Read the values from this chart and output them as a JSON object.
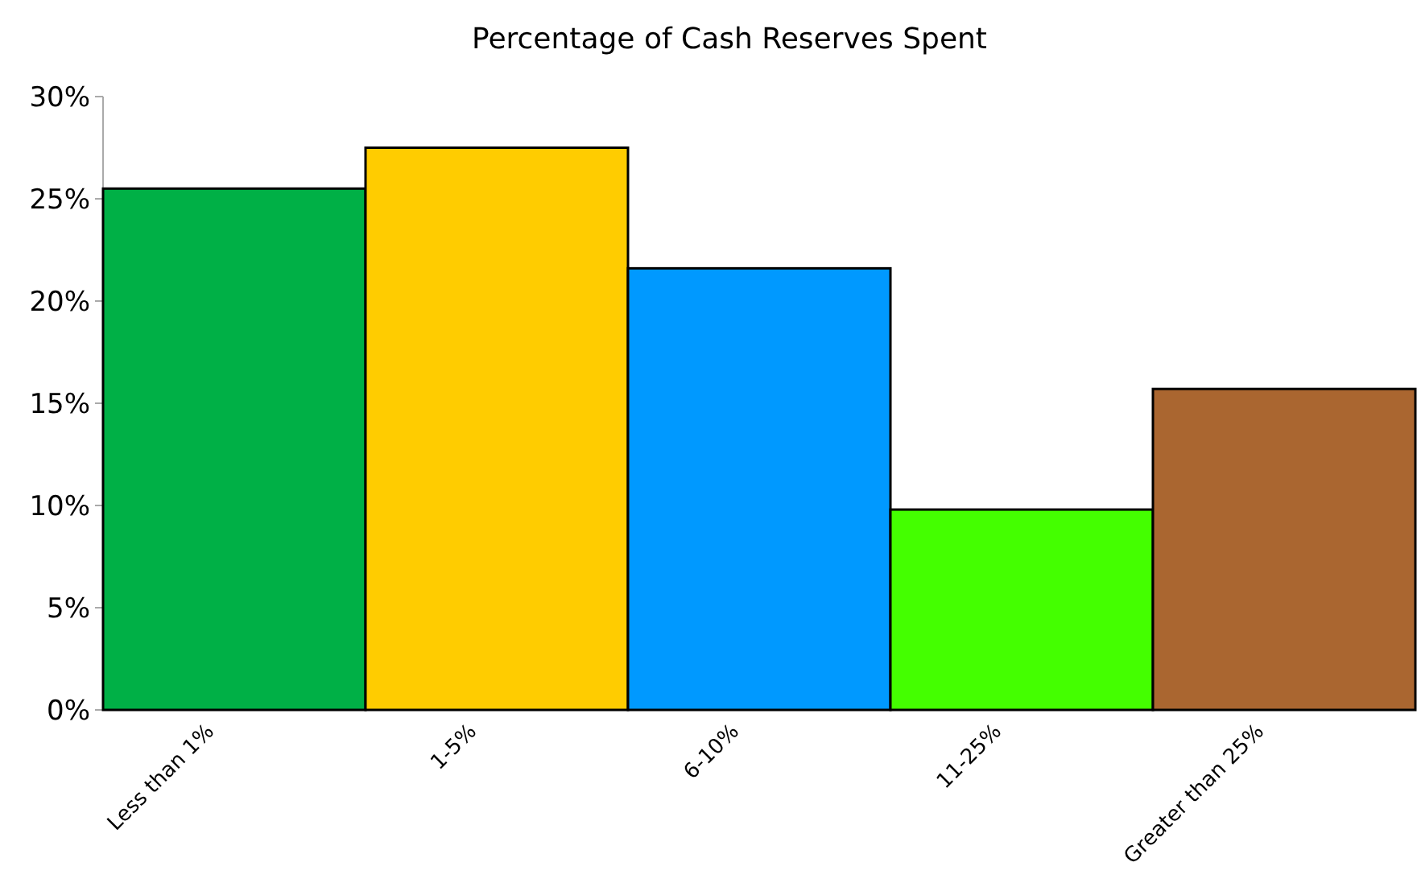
{
  "chart_data": {
    "type": "bar",
    "title": "Percentage of Cash Reserves Spent",
    "categories": [
      "Less than 1%",
      "1-5%",
      "6-10%",
      "11-25%",
      "Greater than 25%"
    ],
    "values": [
      25.5,
      27.5,
      21.6,
      9.8,
      15.7
    ],
    "colors": [
      "#00b046",
      "#ffcc00",
      "#0099ff",
      "#44ff00",
      "#aa6630"
    ],
    "ylim": [
      0,
      30
    ],
    "yticks": [
      {
        "value": 0,
        "label": "0%"
      },
      {
        "value": 5,
        "label": "5%"
      },
      {
        "value": 10,
        "label": "10%"
      },
      {
        "value": 15,
        "label": "15%"
      },
      {
        "value": 20,
        "label": "20%"
      },
      {
        "value": 25,
        "label": "25%"
      },
      {
        "value": 30,
        "label": "30%"
      }
    ],
    "grid": false
  }
}
